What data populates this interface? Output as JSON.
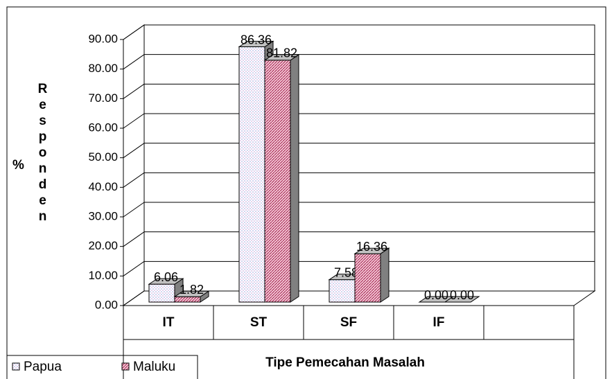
{
  "chart_data": {
    "type": "bar3d",
    "y_unit": "%",
    "y_label": "Responden",
    "x_label": "Tipe Pemecahan Masalah",
    "categories": [
      "IT",
      "ST",
      "SF",
      "IF"
    ],
    "series": [
      {
        "name": "Papua",
        "color": "#ffffff",
        "values": [
          6.06,
          86.36,
          7.58,
          0.0
        ],
        "value_labels": [
          "6.06",
          "86.36",
          "7.58",
          "0.00"
        ]
      },
      {
        "name": "Maluku",
        "color": "#f4c6d6",
        "values": [
          1.82,
          81.82,
          16.36,
          0.0
        ],
        "value_labels": [
          "1.82",
          "81.82",
          "16.36",
          "0.00"
        ]
      }
    ],
    "ylim": [
      0,
      90
    ],
    "yticks": [
      {
        "value": 0,
        "label": "0.00"
      },
      {
        "value": 10,
        "label": "10.00"
      },
      {
        "value": 20,
        "label": "20.00"
      },
      {
        "value": 30,
        "label": "30.00"
      },
      {
        "value": 40,
        "label": "40.00"
      },
      {
        "value": 50,
        "label": "50.00"
      },
      {
        "value": 60,
        "label": "60.00"
      },
      {
        "value": 70,
        "label": "70.00"
      },
      {
        "value": 80,
        "label": "80.00"
      },
      {
        "value": 90,
        "label": "90.00"
      }
    ],
    "grid": true,
    "legend": "bottom-left"
  }
}
